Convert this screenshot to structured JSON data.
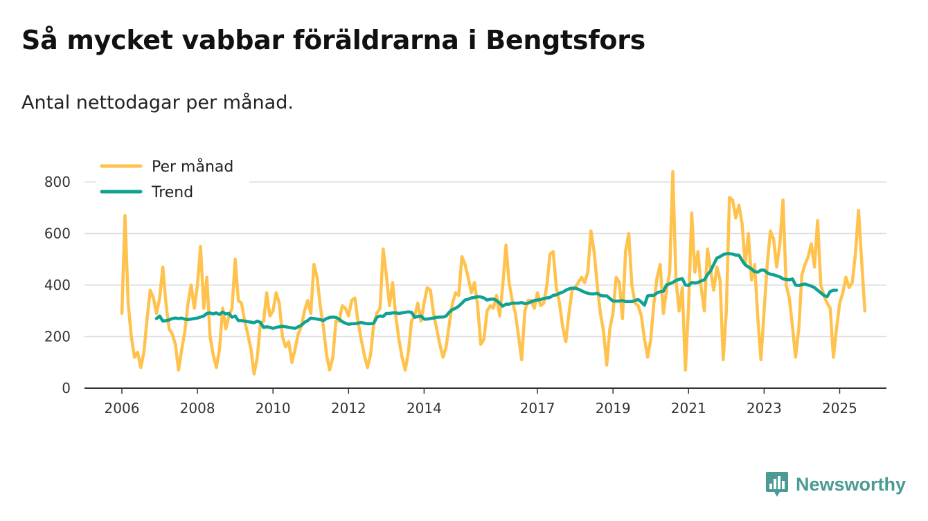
{
  "header": {
    "title": "Så mycket vabbar föräldrarna i Bengtsfors",
    "subtitle": "Antal nettodagar per månad."
  },
  "brand": {
    "name": "Newsworthy",
    "icon": "bar-chart-speech-icon",
    "color": "#4b9b94"
  },
  "colors": {
    "per_month": "#ffc24d",
    "trend": "#0fa192",
    "grid": "#dddddd",
    "axis": "#333333"
  },
  "chart_data": {
    "type": "line",
    "title": "Så mycket vabbar föräldrarna i Bengtsfors",
    "subtitle": "Antal nettodagar per månad.",
    "xlabel": "",
    "ylabel": "",
    "ylim": [
      0,
      800
    ],
    "xlim": [
      2005.1,
      2026.3
    ],
    "yticks": [
      0,
      200,
      400,
      600,
      800
    ],
    "xticks": [
      2006,
      2008,
      2010,
      2012,
      2014,
      2017,
      2019,
      2021,
      2023,
      2025
    ],
    "legend": {
      "placement": "top-left",
      "entries": [
        "Per månad",
        "Trend"
      ]
    },
    "series": [
      {
        "name": "Per månad",
        "start_year": 2006,
        "start_month": 1,
        "values": [
          290,
          670,
          330,
          200,
          120,
          140,
          80,
          140,
          270,
          380,
          350,
          290,
          350,
          470,
          330,
          230,
          210,
          170,
          70,
          150,
          220,
          330,
          400,
          310,
          400,
          550,
          310,
          430,
          200,
          130,
          80,
          150,
          310,
          230,
          280,
          310,
          500,
          340,
          330,
          260,
          210,
          150,
          55,
          120,
          250,
          260,
          370,
          280,
          300,
          370,
          330,
          200,
          160,
          180,
          100,
          150,
          210,
          240,
          300,
          340,
          290,
          480,
          430,
          320,
          240,
          130,
          70,
          120,
          260,
          260,
          320,
          310,
          280,
          340,
          350,
          260,
          190,
          130,
          80,
          130,
          250,
          290,
          310,
          540,
          440,
          320,
          410,
          280,
          190,
          120,
          70,
          140,
          260,
          280,
          330,
          260,
          330,
          390,
          380,
          290,
          230,
          170,
          120,
          160,
          250,
          330,
          370,
          360,
          510,
          480,
          430,
          370,
          410,
          320,
          170,
          190,
          300,
          320,
          310,
          360,
          280,
          400,
          555,
          410,
          340,
          290,
          200,
          110,
          300,
          340,
          340,
          310,
          370,
          320,
          330,
          400,
          520,
          530,
          390,
          330,
          240,
          180,
          290,
          380,
          390,
          410,
          430,
          410,
          450,
          610,
          530,
          400,
          290,
          220,
          90,
          230,
          290,
          430,
          410,
          270,
          530,
          600,
          400,
          330,
          320,
          280,
          190,
          120,
          190,
          330,
          430,
          480,
          290,
          380,
          450,
          840,
          420,
          300,
          390,
          70,
          320,
          680,
          450,
          530,
          390,
          300,
          540,
          460,
          380,
          470,
          420,
          110,
          300,
          740,
          730,
          660,
          710,
          640,
          480,
          600,
          420,
          480,
          270,
          110,
          300,
          480,
          610,
          580,
          470,
          560,
          730,
          400,
          350,
          240,
          120,
          230,
          440,
          480,
          510,
          560,
          470,
          650,
          400,
          360,
          330,
          310,
          120,
          230,
          330,
          370,
          430,
          390,
          410,
          520,
          690,
          490,
          300
        ]
      },
      {
        "name": "Trend",
        "start_year": 2006,
        "start_month": 12,
        "values": [
          270,
          280,
          260,
          262,
          265,
          270,
          272,
          270,
          272,
          268,
          266,
          268,
          270,
          272,
          276,
          280,
          290,
          292,
          288,
          292,
          286,
          295,
          288,
          290,
          275,
          280,
          262,
          262,
          260,
          258,
          256,
          254,
          260,
          255,
          236,
          238,
          236,
          232,
          236,
          238,
          240,
          238,
          236,
          234,
          232,
          238,
          244,
          255,
          262,
          272,
          270,
          268,
          266,
          262,
          270,
          274,
          276,
          274,
          268,
          258,
          252,
          248,
          250,
          250,
          252,
          255,
          252,
          250,
          250,
          252,
          275,
          280,
          278,
          290,
          290,
          292,
          292,
          290,
          292,
          294,
          296,
          294,
          275,
          278,
          280,
          268,
          268,
          270,
          272,
          275,
          276,
          276,
          280,
          295,
          305,
          310,
          318,
          330,
          342,
          345,
          350,
          352,
          355,
          354,
          350,
          342,
          345,
          346,
          340,
          330,
          318,
          326,
          326,
          330,
          330,
          330,
          332,
          328,
          330,
          335,
          340,
          342,
          344,
          348,
          350,
          352,
          360,
          362,
          368,
          372,
          380,
          385,
          388,
          388,
          384,
          378,
          372,
          368,
          366,
          366,
          368,
          360,
          358,
          358,
          348,
          338,
          338,
          338,
          340,
          336,
          336,
          336,
          340,
          344,
          334,
          322,
          358,
          360,
          360,
          370,
          374,
          376,
          400,
          405,
          410,
          418,
          422,
          425,
          400,
          398,
          410,
          408,
          410,
          416,
          420,
          440,
          455,
          480,
          505,
          510,
          518,
          522,
          522,
          520,
          516,
          516,
          496,
          478,
          470,
          462,
          452,
          450,
          458,
          458,
          448,
          442,
          440,
          436,
          432,
          424,
          422,
          420,
          424,
          400,
          398,
          402,
          404,
          400,
          396,
          390,
          380,
          370,
          360,
          355,
          375,
          380,
          380
        ]
      }
    ]
  }
}
